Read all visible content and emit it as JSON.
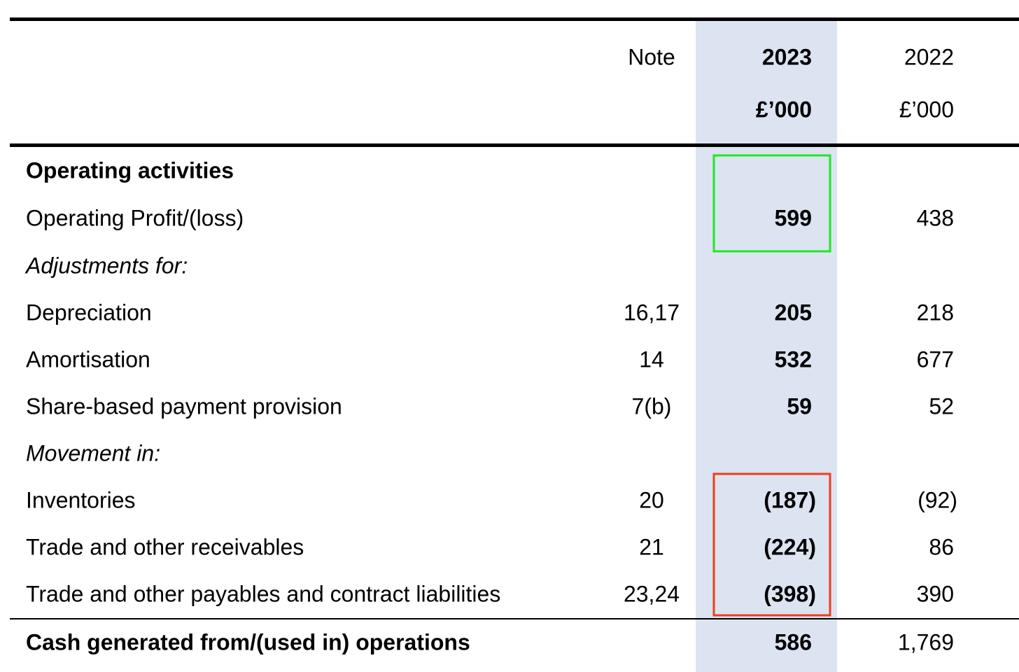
{
  "table": {
    "header": {
      "note": "Note",
      "year_current": "2023",
      "unit_current": "£’000",
      "year_prior": "2022",
      "unit_prior": "£’000"
    },
    "rows": [
      {
        "label": "Operating activities"
      },
      {
        "label": "Operating Profit/(loss)",
        "current": "599",
        "prior": "438"
      },
      {
        "label": "Adjustments for:"
      },
      {
        "label": "Depreciation",
        "note": "16,17",
        "current": "205",
        "prior": "218"
      },
      {
        "label": "Amortisation",
        "note": "14",
        "current": "532",
        "prior": "677"
      },
      {
        "label": "Share-based payment provision",
        "note": "7(b)",
        "current": "59",
        "prior": "52"
      },
      {
        "label": "Movement in:"
      },
      {
        "label": "Inventories",
        "note": "20",
        "current": "(187)",
        "prior": "(92)"
      },
      {
        "label": "Trade and other receivables",
        "note": "21",
        "current": "(224)",
        "prior": "86"
      },
      {
        "label": "Trade and other payables and contract liabilities",
        "note": "23,24",
        "current": "(398)",
        "prior": "390"
      },
      {
        "label": "Cash generated from/(used in) operations",
        "current": "586",
        "prior": "1,769"
      }
    ]
  }
}
